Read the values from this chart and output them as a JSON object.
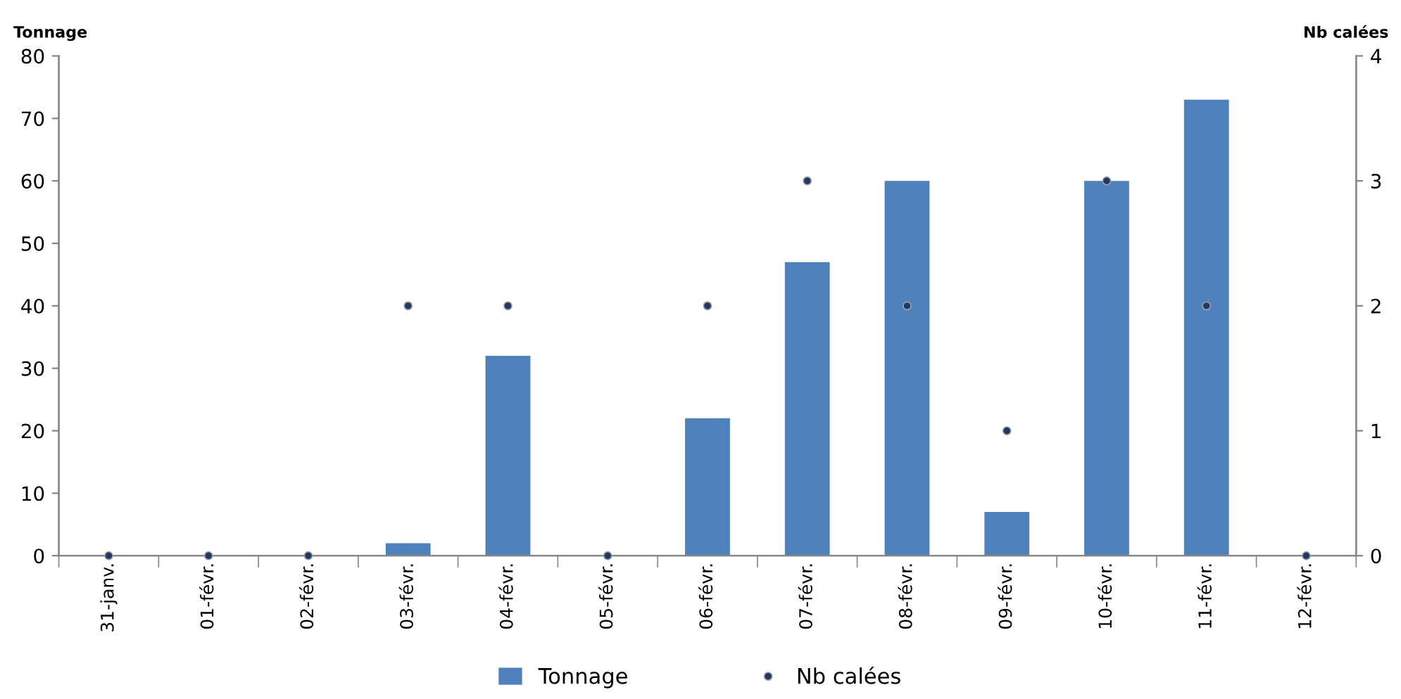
{
  "chart_data": {
    "type": "bar",
    "categories": [
      "31-janv.",
      "01-févr.",
      "02-févr.",
      "03-févr.",
      "04-févr.",
      "05-févr.",
      "06-févr.",
      "07-févr.",
      "08-févr.",
      "09-févr.",
      "10-févr.",
      "11-févr.",
      "12-févr."
    ],
    "series": [
      {
        "name": "Tonnage",
        "color": "#4f81bd",
        "values": [
          0,
          0,
          0,
          2,
          32,
          0,
          22,
          47,
          60,
          7,
          60,
          73,
          0
        ]
      },
      {
        "name": "Nb calées",
        "type": "scatter",
        "axis": "y2",
        "color": "#1f3864",
        "marker": "circle",
        "values": [
          0,
          0,
          0,
          2,
          2,
          0,
          2,
          3,
          2,
          1,
          3,
          2,
          0
        ]
      }
    ],
    "ylabel": "Tonnage",
    "y2label": "Nb calées",
    "ylim": [
      0,
      80
    ],
    "yticks": [
      0,
      10,
      20,
      30,
      40,
      50,
      60,
      70,
      80
    ],
    "y2lim": [
      0,
      4
    ],
    "y2ticks": [
      0,
      1,
      2,
      3,
      4
    ],
    "grid": false,
    "legend": "bottom"
  }
}
